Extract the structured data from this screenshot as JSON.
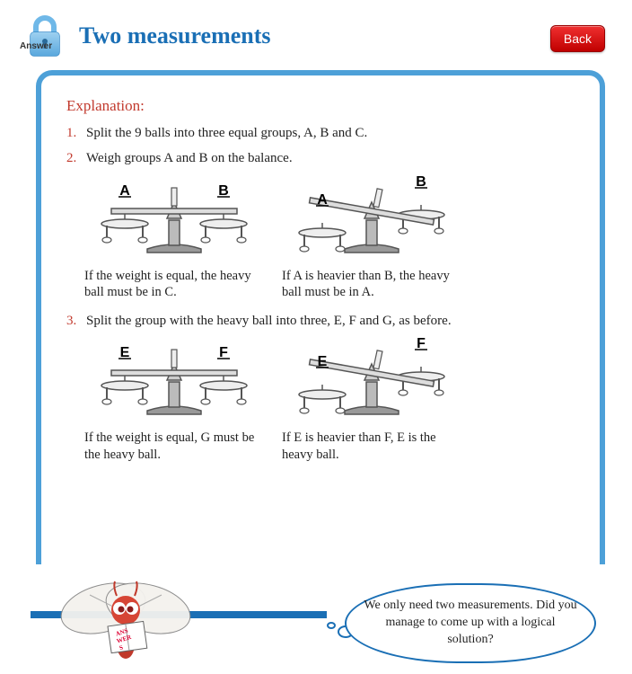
{
  "header": {
    "answer_label": "Answer",
    "title": "Two measurements",
    "back_label": "Back"
  },
  "explanation_label": "Explanation:",
  "steps": {
    "s1": {
      "num": "1.",
      "text": "Split the 9 balls into three equal groups, A, B and C."
    },
    "s2": {
      "num": "2.",
      "text": "Weigh groups A and B on the balance."
    },
    "s3": {
      "num": "3.",
      "text": "Split the group with the heavy ball into three, E, F and G, as before."
    }
  },
  "captions": {
    "c1a": "If the weight is equal, the heavy ball must be in C.",
    "c1b": "If A is heavier than B, the heavy ball must be in A.",
    "c2a": "If the weight is equal, G must be the heavy ball.",
    "c2b": "If E is heavier than F, E is the heavy ball."
  },
  "scales": {
    "row1": {
      "left_l": "A",
      "left_r": "B",
      "right_l": "A",
      "right_r": "B"
    },
    "row2": {
      "left_l": "E",
      "left_r": "F",
      "right_l": "E",
      "right_r": "F"
    }
  },
  "bubble_text": "We only need two measurements. Did you manage to come up with a logical solution?",
  "colors": {
    "accent_blue": "#1a6fb5",
    "border_blue": "#4da0d8",
    "red_text": "#c23a2e",
    "btn_red_top": "#f03030",
    "btn_red_bottom": "#c00000"
  }
}
